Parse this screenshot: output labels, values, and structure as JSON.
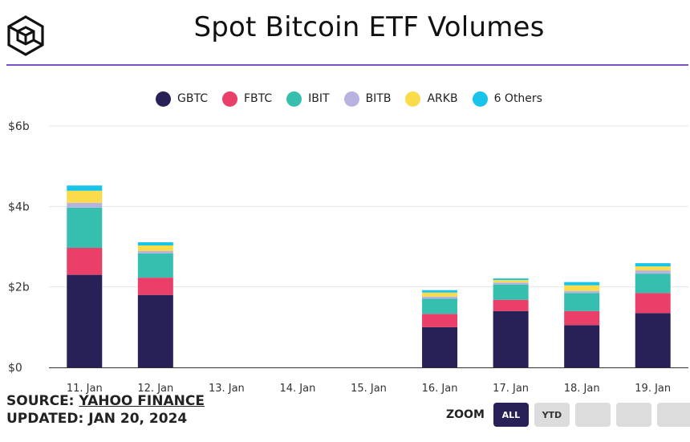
{
  "title": "Spot Bitcoin ETF Volumes",
  "colors": {
    "accent": "#7d51c8",
    "series": {
      "GBTC": "#272158",
      "FBTC": "#ea3f68",
      "IBIT": "#36bfae",
      "BITB": "#b7b2e0",
      "ARKB": "#fadc4a",
      "6 Others": "#19c4ea"
    }
  },
  "legend": [
    "GBTC",
    "FBTC",
    "IBIT",
    "BITB",
    "ARKB",
    "6 Others"
  ],
  "chart_data": {
    "type": "bar",
    "stacked": true,
    "title": "Spot Bitcoin ETF Volumes",
    "categories": [
      "11. Jan",
      "12. Jan",
      "13. Jan",
      "14. Jan",
      "15. Jan",
      "16. Jan",
      "17. Jan",
      "18. Jan",
      "19. Jan"
    ],
    "y_ticks": [
      "$0",
      "$2b",
      "$4b",
      "$6b"
    ],
    "ylim": [
      0,
      6
    ],
    "y_unit": "billion USD",
    "series": [
      {
        "name": "GBTC",
        "values": [
          2.3,
          1.8,
          0,
          0,
          0,
          1.0,
          1.4,
          1.05,
          1.35
        ]
      },
      {
        "name": "FBTC",
        "values": [
          0.67,
          0.43,
          0,
          0,
          0,
          0.33,
          0.28,
          0.35,
          0.5
        ]
      },
      {
        "name": "IBIT",
        "values": [
          1.0,
          0.6,
          0,
          0,
          0,
          0.38,
          0.38,
          0.45,
          0.48
        ]
      },
      {
        "name": "BITB",
        "values": [
          0.12,
          0.06,
          0,
          0,
          0,
          0.05,
          0.05,
          0.05,
          0.08
        ]
      },
      {
        "name": "ARKB",
        "values": [
          0.3,
          0.14,
          0,
          0,
          0,
          0.1,
          0.06,
          0.14,
          0.1
        ]
      },
      {
        "name": "6 Others",
        "values": [
          0.13,
          0.08,
          0,
          0,
          0,
          0.06,
          0.04,
          0.08,
          0.08
        ]
      }
    ]
  },
  "footer": {
    "source_prefix": "SOURCE: ",
    "source_link": "YAHOO FINANCE",
    "updated": "UPDATED: JAN 20, 2024"
  },
  "zoom": {
    "label": "ZOOM",
    "buttons": [
      {
        "label": "ALL",
        "active": true
      },
      {
        "label": "YTD",
        "active": false
      },
      {
        "label": "",
        "active": false
      },
      {
        "label": "",
        "active": false
      },
      {
        "label": "",
        "active": false
      }
    ]
  }
}
